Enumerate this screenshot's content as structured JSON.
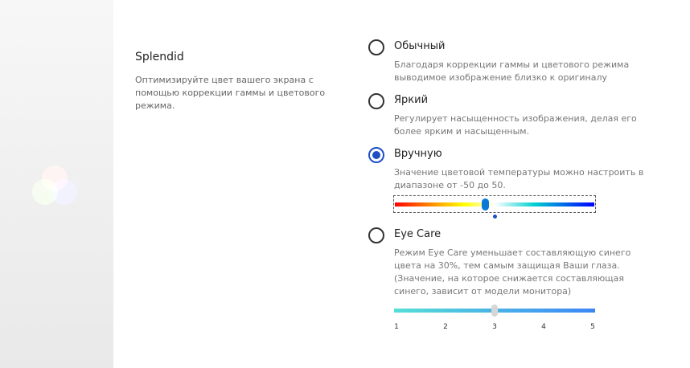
{
  "section": {
    "title": "Splendid",
    "description": "Оптимизируйте цвет вашего экрана с помощью коррекции гаммы и цветового режима."
  },
  "options": [
    {
      "label": "Обычный",
      "description": "Благодаря коррекции гаммы и цветового режима выводимое изображение близко к оригиналу",
      "selected": false
    },
    {
      "label": "Яркий",
      "description": "Регулирует насыщенность изображения, делая его более ярким и насыщенным.",
      "selected": false
    },
    {
      "label": "Вручную",
      "description": "Значение цветовой температуры можно настроить в диапазоне от -50 до 50.",
      "selected": true
    },
    {
      "label": "Eye Care",
      "description": "Режим Eye Care уменьшает составляющую синего цвета на 30%, тем самым защищая Ваши глаза. (Значение, на которое снижается составляющая синего, зависит от модели монитора)",
      "selected": false
    }
  ],
  "temperature_slider": {
    "min": -50,
    "max": 50,
    "value": -5
  },
  "eye_care_slider": {
    "min": 1,
    "max": 5,
    "value": 3,
    "ticks": [
      "1",
      "2",
      "3",
      "4",
      "5"
    ],
    "enabled": false
  },
  "icons": {
    "logo": "rgb-circles-icon"
  }
}
